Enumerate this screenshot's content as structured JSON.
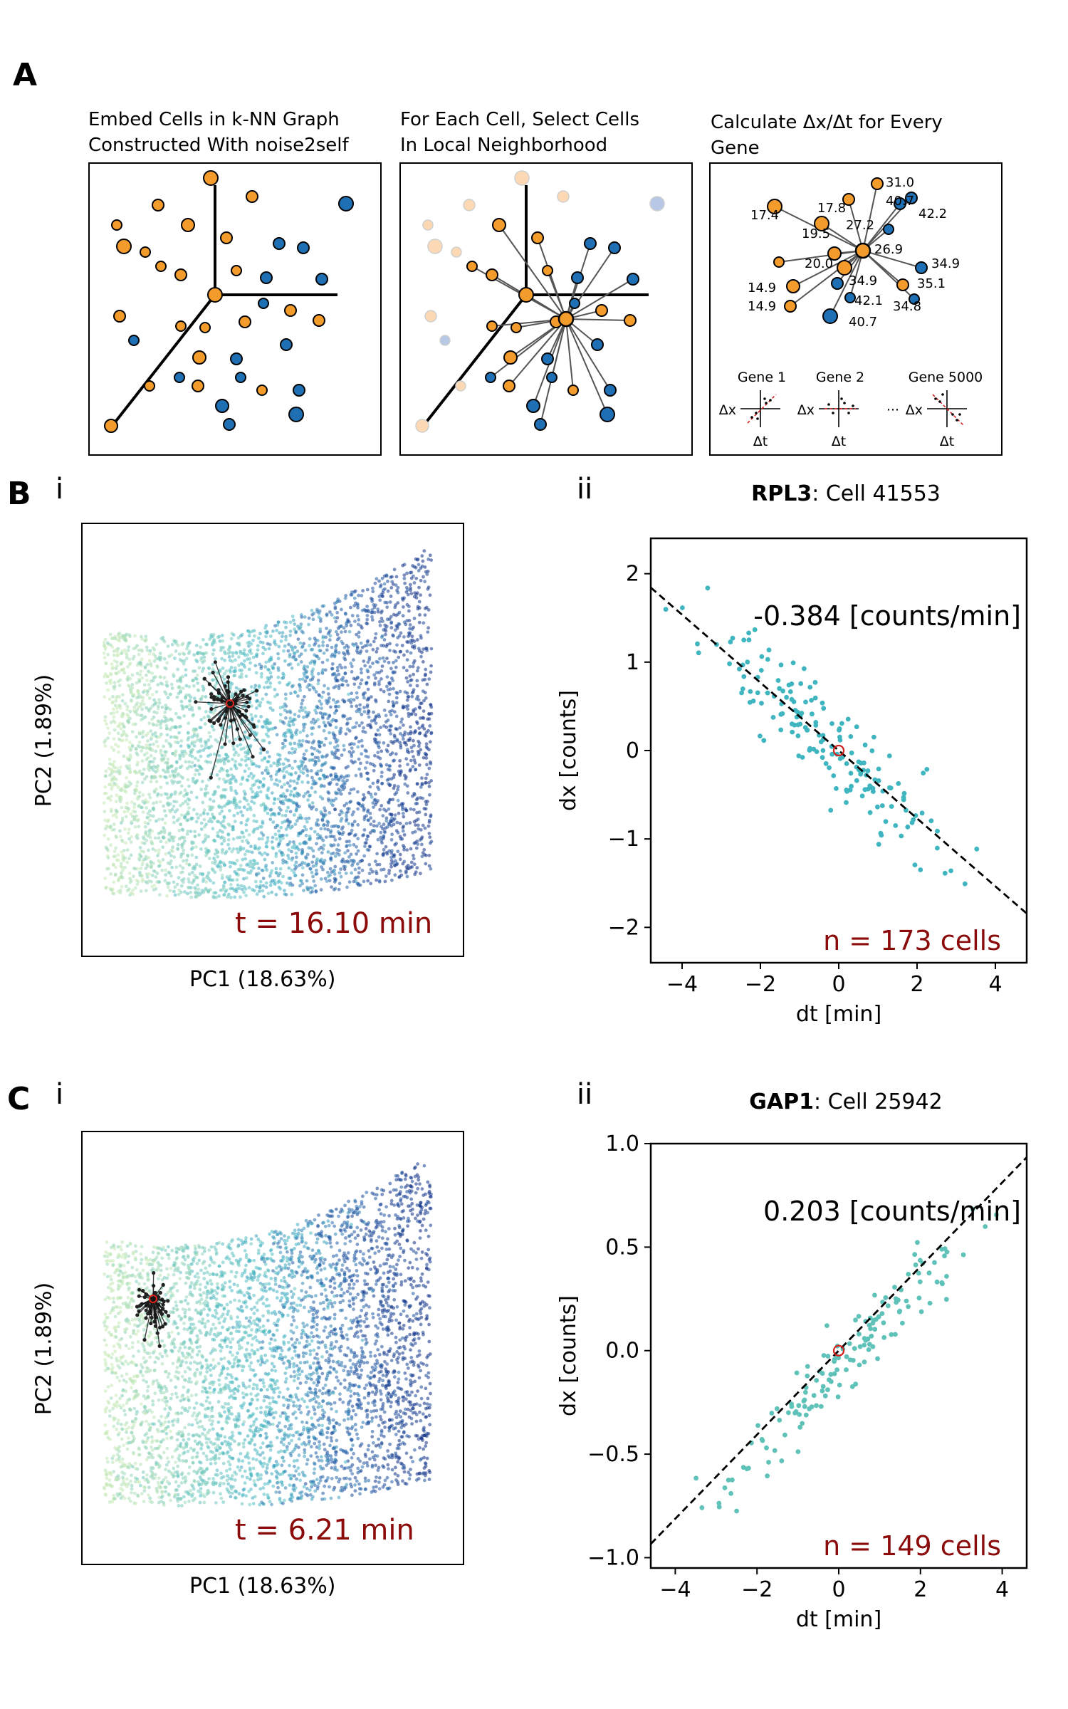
{
  "panel_a": {
    "label": "A",
    "titles": [
      [
        "Embed Cells in k-NN Graph",
        "Constructed With noise2self"
      ],
      [
        "For Each Cell, Select Cells",
        "In Local Neighborhood"
      ],
      [
        "Calculate Δx/Δt for Every",
        "Gene"
      ]
    ],
    "values": [
      "31.0",
      "40.7",
      "17.8",
      "27.2",
      "42.2",
      "17.4",
      "19.5",
      "26.9",
      "20.0",
      "34.9",
      "14.9",
      "34.9",
      "35.1",
      "42.1",
      "14.9",
      "34.8",
      "40.7"
    ],
    "genes": [
      "Gene 1",
      "Gene 2",
      "Gene 5000"
    ],
    "dx_label": "Δx",
    "dt_label": "Δt",
    "ellipsis": "···",
    "colors": {
      "orange": "#f39c2c",
      "blue": "#1f6fb4"
    }
  },
  "panel_b": {
    "label": "B",
    "sub_i": "i",
    "sub_ii": "ii",
    "pca": {
      "xlabel": "PC1 (18.63%)",
      "ylabel": "PC2 (1.89%)",
      "annotation": "t = 16.10 min"
    },
    "scatter": {
      "gene": "RPL3",
      "title_rest": ": Cell 41553",
      "slope_label": "-0.384 [counts/min]",
      "n_label": "n = 173 cells",
      "xlabel": "dt [min]",
      "ylabel": "dx [counts]"
    }
  },
  "panel_c": {
    "label": "C",
    "sub_i": "i",
    "sub_ii": "ii",
    "pca": {
      "xlabel": "PC1 (18.63%)",
      "ylabel": "PC2 (1.89%)",
      "annotation": "t = 6.21 min"
    },
    "scatter": {
      "gene": "GAP1",
      "title_rest": ": Cell 25942",
      "slope_label": "0.203 [counts/min]",
      "n_label": "n = 149 cells",
      "xlabel": "dt [min]",
      "ylabel": "dx [counts]"
    }
  },
  "chart_data": [
    {
      "type": "scatter",
      "title": "RPL3: Cell 41553",
      "xlabel": "dt [min]",
      "ylabel": "dx [counts]",
      "xlim": [
        -4.8,
        4.8
      ],
      "ylim": [
        -2.4,
        2.4
      ],
      "xticks": [
        -4,
        -2,
        0,
        2,
        4
      ],
      "yticks": [
        -2,
        -1,
        0,
        1,
        2
      ],
      "xtick_labels": [
        "−4",
        "−2",
        "0",
        "2",
        "4"
      ],
      "ytick_labels": [
        "−2",
        "−1",
        "0",
        "1",
        "2"
      ],
      "fit_slope": -0.384,
      "n_points": 173,
      "annotation": "-0.384 [counts/min]",
      "point_color": "#3fb5c0",
      "reference_point": [
        0,
        0
      ]
    },
    {
      "type": "scatter",
      "title": "GAP1: Cell 25942",
      "xlabel": "dt [min]",
      "ylabel": "dx [counts]",
      "xlim": [
        -4.6,
        4.6
      ],
      "ylim": [
        -1.05,
        1.0
      ],
      "xticks": [
        -4,
        -2,
        0,
        2,
        4
      ],
      "yticks": [
        -1.0,
        -0.5,
        0.0,
        0.5,
        1.0
      ],
      "xtick_labels": [
        "−4",
        "−2",
        "0",
        "2",
        "4"
      ],
      "ytick_labels": [
        "−1.0",
        "−0.5",
        "0.0",
        "0.5",
        "1.0"
      ],
      "fit_slope": 0.203,
      "n_points": 149,
      "annotation": "0.203 [counts/min]",
      "point_color": "#5ec2b8",
      "reference_point": [
        0,
        0
      ]
    }
  ]
}
